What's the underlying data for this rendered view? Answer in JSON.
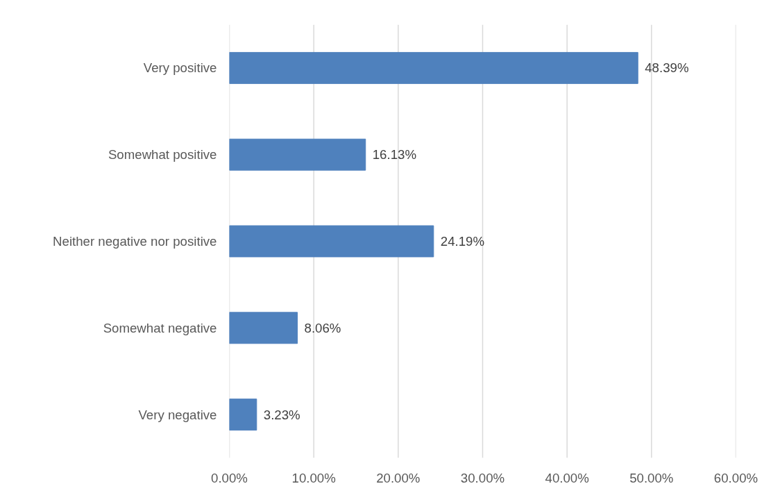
{
  "chart_data": {
    "type": "bar",
    "orientation": "horizontal",
    "categories": [
      "Very positive",
      "Somewhat positive",
      "Neither negative nor positive",
      "Somewhat negative",
      "Very negative"
    ],
    "values": [
      48.39,
      16.13,
      24.19,
      8.06,
      3.23
    ],
    "value_labels": [
      "48.39%",
      "16.13%",
      "24.19%",
      "8.06%",
      "3.23%"
    ],
    "color": "#4f81bd",
    "xlim": [
      0,
      60
    ],
    "xticks": [
      {
        "value": 0,
        "label": "0.00%"
      },
      {
        "value": 10,
        "label": "10.00%"
      },
      {
        "value": 20,
        "label": "20.00%"
      },
      {
        "value": 30,
        "label": "30.00%"
      },
      {
        "value": 40,
        "label": "40.00%"
      },
      {
        "value": 50,
        "label": "50.00%"
      },
      {
        "value": 60,
        "label": "60.00%"
      }
    ],
    "grid": "x"
  }
}
